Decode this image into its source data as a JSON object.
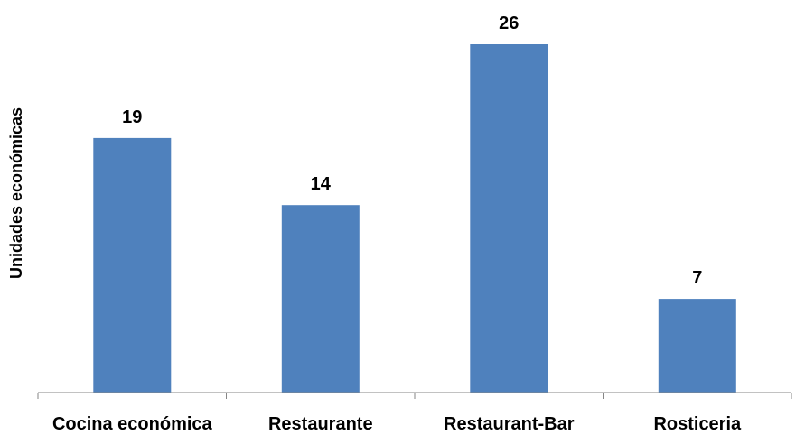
{
  "chart_data": {
    "type": "bar",
    "categories": [
      "Cocina económica",
      "Restaurante",
      "Restaurant-Bar",
      "Rosticeria"
    ],
    "values": [
      19,
      14,
      26,
      7
    ],
    "title": "",
    "xlabel": "",
    "ylabel": "Unidades económicas",
    "ylim": [
      0,
      26
    ],
    "grid": false,
    "legend": "none",
    "bar_color": "#4f81bd",
    "axis_color": "#868686"
  }
}
